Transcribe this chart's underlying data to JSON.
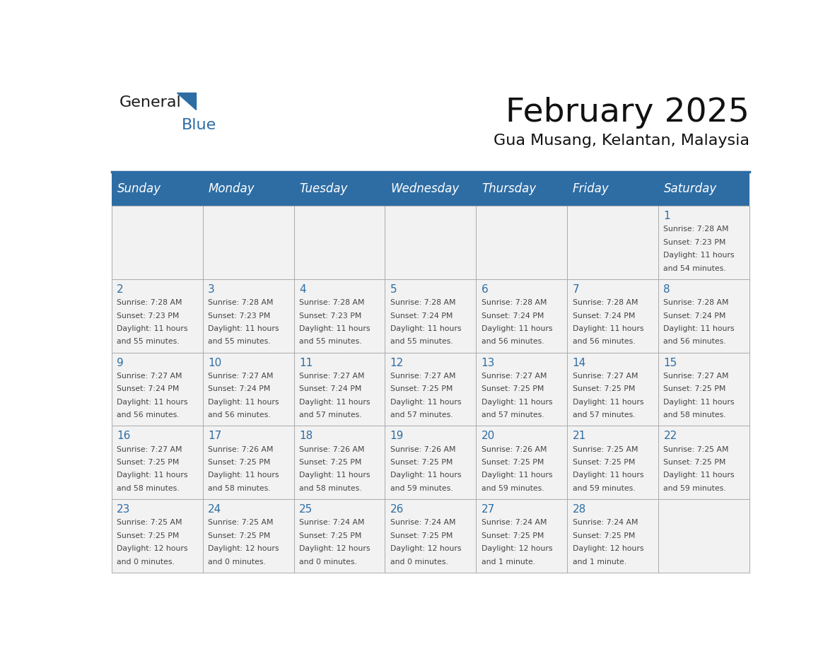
{
  "title": "February 2025",
  "subtitle": "Gua Musang, Kelantan, Malaysia",
  "days_of_week": [
    "Sunday",
    "Monday",
    "Tuesday",
    "Wednesday",
    "Thursday",
    "Friday",
    "Saturday"
  ],
  "header_bg": "#2E6DA4",
  "header_text": "#FFFFFF",
  "cell_bg": "#F2F2F2",
  "cell_border": "#AAAAAA",
  "day_number_color": "#2E6DA4",
  "text_color": "#444444",
  "logo_general_color": "#1a1a1a",
  "logo_blue_color": "#2E6DA4",
  "calendar_data": [
    [
      null,
      null,
      null,
      null,
      null,
      null,
      {
        "day": 1,
        "sunrise": "7:28 AM",
        "sunset": "7:23 PM",
        "daylight": "11 hours",
        "daylight2": "and 54 minutes."
      }
    ],
    [
      {
        "day": 2,
        "sunrise": "7:28 AM",
        "sunset": "7:23 PM",
        "daylight": "11 hours",
        "daylight2": "and 55 minutes."
      },
      {
        "day": 3,
        "sunrise": "7:28 AM",
        "sunset": "7:23 PM",
        "daylight": "11 hours",
        "daylight2": "and 55 minutes."
      },
      {
        "day": 4,
        "sunrise": "7:28 AM",
        "sunset": "7:23 PM",
        "daylight": "11 hours",
        "daylight2": "and 55 minutes."
      },
      {
        "day": 5,
        "sunrise": "7:28 AM",
        "sunset": "7:24 PM",
        "daylight": "11 hours",
        "daylight2": "and 55 minutes."
      },
      {
        "day": 6,
        "sunrise": "7:28 AM",
        "sunset": "7:24 PM",
        "daylight": "11 hours",
        "daylight2": "and 56 minutes."
      },
      {
        "day": 7,
        "sunrise": "7:28 AM",
        "sunset": "7:24 PM",
        "daylight": "11 hours",
        "daylight2": "and 56 minutes."
      },
      {
        "day": 8,
        "sunrise": "7:28 AM",
        "sunset": "7:24 PM",
        "daylight": "11 hours",
        "daylight2": "and 56 minutes."
      }
    ],
    [
      {
        "day": 9,
        "sunrise": "7:27 AM",
        "sunset": "7:24 PM",
        "daylight": "11 hours",
        "daylight2": "and 56 minutes."
      },
      {
        "day": 10,
        "sunrise": "7:27 AM",
        "sunset": "7:24 PM",
        "daylight": "11 hours",
        "daylight2": "and 56 minutes."
      },
      {
        "day": 11,
        "sunrise": "7:27 AM",
        "sunset": "7:24 PM",
        "daylight": "11 hours",
        "daylight2": "and 57 minutes."
      },
      {
        "day": 12,
        "sunrise": "7:27 AM",
        "sunset": "7:25 PM",
        "daylight": "11 hours",
        "daylight2": "and 57 minutes."
      },
      {
        "day": 13,
        "sunrise": "7:27 AM",
        "sunset": "7:25 PM",
        "daylight": "11 hours",
        "daylight2": "and 57 minutes."
      },
      {
        "day": 14,
        "sunrise": "7:27 AM",
        "sunset": "7:25 PM",
        "daylight": "11 hours",
        "daylight2": "and 57 minutes."
      },
      {
        "day": 15,
        "sunrise": "7:27 AM",
        "sunset": "7:25 PM",
        "daylight": "11 hours",
        "daylight2": "and 58 minutes."
      }
    ],
    [
      {
        "day": 16,
        "sunrise": "7:27 AM",
        "sunset": "7:25 PM",
        "daylight": "11 hours",
        "daylight2": "and 58 minutes."
      },
      {
        "day": 17,
        "sunrise": "7:26 AM",
        "sunset": "7:25 PM",
        "daylight": "11 hours",
        "daylight2": "and 58 minutes."
      },
      {
        "day": 18,
        "sunrise": "7:26 AM",
        "sunset": "7:25 PM",
        "daylight": "11 hours",
        "daylight2": "and 58 minutes."
      },
      {
        "day": 19,
        "sunrise": "7:26 AM",
        "sunset": "7:25 PM",
        "daylight": "11 hours",
        "daylight2": "and 59 minutes."
      },
      {
        "day": 20,
        "sunrise": "7:26 AM",
        "sunset": "7:25 PM",
        "daylight": "11 hours",
        "daylight2": "and 59 minutes."
      },
      {
        "day": 21,
        "sunrise": "7:25 AM",
        "sunset": "7:25 PM",
        "daylight": "11 hours",
        "daylight2": "and 59 minutes."
      },
      {
        "day": 22,
        "sunrise": "7:25 AM",
        "sunset": "7:25 PM",
        "daylight": "11 hours",
        "daylight2": "and 59 minutes."
      }
    ],
    [
      {
        "day": 23,
        "sunrise": "7:25 AM",
        "sunset": "7:25 PM",
        "daylight": "12 hours",
        "daylight2": "and 0 minutes."
      },
      {
        "day": 24,
        "sunrise": "7:25 AM",
        "sunset": "7:25 PM",
        "daylight": "12 hours",
        "daylight2": "and 0 minutes."
      },
      {
        "day": 25,
        "sunrise": "7:24 AM",
        "sunset": "7:25 PM",
        "daylight": "12 hours",
        "daylight2": "and 0 minutes."
      },
      {
        "day": 26,
        "sunrise": "7:24 AM",
        "sunset": "7:25 PM",
        "daylight": "12 hours",
        "daylight2": "and 0 minutes."
      },
      {
        "day": 27,
        "sunrise": "7:24 AM",
        "sunset": "7:25 PM",
        "daylight": "12 hours",
        "daylight2": "and 1 minute."
      },
      {
        "day": 28,
        "sunrise": "7:24 AM",
        "sunset": "7:25 PM",
        "daylight": "12 hours",
        "daylight2": "and 1 minute."
      },
      null
    ]
  ]
}
